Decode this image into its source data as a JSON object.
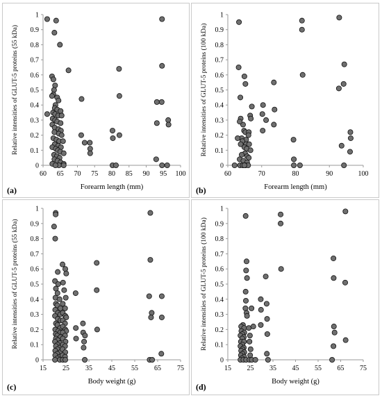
{
  "chart_data": [
    {
      "type": "scatter",
      "panel_label": "(a)",
      "xlabel": "Forearm length (mm)",
      "ylabel": "Relative intensities of GLUT-5 proteins (55 kDa)",
      "xlim": [
        60,
        100
      ],
      "ylim": [
        0,
        1
      ],
      "xticks": [
        "60",
        "65",
        "70",
        "75",
        "80",
        "85",
        "90",
        "95",
        "100"
      ],
      "yticks": [
        "0",
        "0.1",
        "0.2",
        "0.3",
        "0.4",
        "0.5",
        "0.6",
        "0.7",
        "0.8",
        "0.9",
        "1"
      ],
      "grid": false,
      "marker_color": "#6f6f6f",
      "points": [
        [
          61.2,
          0.97
        ],
        [
          63.3,
          0.88
        ],
        [
          63.8,
          0.96
        ],
        [
          64.9,
          0.8
        ],
        [
          62.6,
          0.59
        ],
        [
          63.0,
          0.57
        ],
        [
          63.5,
          0.53
        ],
        [
          63.2,
          0.5
        ],
        [
          63.0,
          0.47
        ],
        [
          62.6,
          0.46
        ],
        [
          64.1,
          0.45
        ],
        [
          64.5,
          0.43
        ],
        [
          63.6,
          0.4
        ],
        [
          63.4,
          0.38
        ],
        [
          64.1,
          0.37
        ],
        [
          65.1,
          0.36
        ],
        [
          62.9,
          0.35
        ],
        [
          63.5,
          0.34
        ],
        [
          64.4,
          0.33
        ],
        [
          65.4,
          0.33
        ],
        [
          61.2,
          0.34
        ],
        [
          62.8,
          0.31
        ],
        [
          63.5,
          0.3
        ],
        [
          64.1,
          0.29
        ],
        [
          65.1,
          0.28
        ],
        [
          62.7,
          0.27
        ],
        [
          63.4,
          0.25
        ],
        [
          64.5,
          0.24
        ],
        [
          65.2,
          0.23
        ],
        [
          63.3,
          0.22
        ],
        [
          64.6,
          0.21
        ],
        [
          65.4,
          0.2
        ],
        [
          63.0,
          0.18
        ],
        [
          63.9,
          0.17
        ],
        [
          64.7,
          0.16
        ],
        [
          65.8,
          0.16
        ],
        [
          63.4,
          0.14
        ],
        [
          64.4,
          0.13
        ],
        [
          65.2,
          0.12
        ],
        [
          62.7,
          0.12
        ],
        [
          63.7,
          0.11
        ],
        [
          64.3,
          0.1
        ],
        [
          65.0,
          0.09
        ],
        [
          66.0,
          0.08
        ],
        [
          63.2,
          0.07
        ],
        [
          64.0,
          0.06
        ],
        [
          64.8,
          0.05
        ],
        [
          63.3,
          0.04
        ],
        [
          64.2,
          0.03
        ],
        [
          65.1,
          0.02
        ],
        [
          66.0,
          0.01
        ],
        [
          62.7,
          0.01
        ],
        [
          64.6,
          0.0
        ],
        [
          63.6,
          0.0
        ],
        [
          66.0,
          0.0
        ],
        [
          67.4,
          0.63
        ],
        [
          71.2,
          0.44
        ],
        [
          71.1,
          0.2
        ],
        [
          72.1,
          0.15
        ],
        [
          73.6,
          0.15
        ],
        [
          73.7,
          0.11
        ],
        [
          73.7,
          0.08
        ],
        [
          80.2,
          0.23
        ],
        [
          80.3,
          0.18
        ],
        [
          82.1,
          0.64
        ],
        [
          82.2,
          0.46
        ],
        [
          82.2,
          0.2
        ],
        [
          80.2,
          0.0
        ],
        [
          81.2,
          0.0
        ],
        [
          93.1,
          0.42
        ],
        [
          94.5,
          0.42
        ],
        [
          93.1,
          0.28
        ],
        [
          94.6,
          0.97
        ],
        [
          94.6,
          0.66
        ],
        [
          96.4,
          0.3
        ],
        [
          96.5,
          0.27
        ],
        [
          92.9,
          0.04
        ],
        [
          94.6,
          0.0
        ],
        [
          96.1,
          0.0
        ]
      ]
    },
    {
      "type": "scatter",
      "panel_label": "(b)",
      "xlabel": "Forearm length (mm)",
      "ylabel": "Relative intensities of GLUT-5 proteins (100 kDa)",
      "xlim": [
        60,
        100
      ],
      "ylim": [
        0,
        1
      ],
      "xticks": [
        "60",
        "70",
        "80",
        "90",
        "100"
      ],
      "yticks": [
        "0",
        "0.1",
        "0.2",
        "0.3",
        "0.4",
        "0.5",
        "0.6",
        "0.7",
        "0.8",
        "0.9",
        "1"
      ],
      "grid": false,
      "marker_color": "#6f6f6f",
      "points": [
        [
          63.3,
          0.95
        ],
        [
          63.2,
          0.65
        ],
        [
          63.7,
          0.45
        ],
        [
          63.8,
          0.31
        ],
        [
          64.9,
          0.59
        ],
        [
          65.2,
          0.54
        ],
        [
          64.5,
          0.27
        ],
        [
          63.5,
          0.29
        ],
        [
          64.8,
          0.23
        ],
        [
          65.2,
          0.22
        ],
        [
          66.2,
          0.22
        ],
        [
          66.1,
          0.2
        ],
        [
          67.1,
          0.39
        ],
        [
          66.6,
          0.33
        ],
        [
          66.8,
          0.31
        ],
        [
          64.1,
          0.18
        ],
        [
          62.9,
          0.18
        ],
        [
          65.4,
          0.17
        ],
        [
          64.3,
          0.16
        ],
        [
          63.8,
          0.14
        ],
        [
          65.4,
          0.14
        ],
        [
          66.3,
          0.14
        ],
        [
          64.9,
          0.12
        ],
        [
          65.6,
          0.11
        ],
        [
          66.7,
          0.1
        ],
        [
          65.1,
          0.08
        ],
        [
          64.1,
          0.07
        ],
        [
          65.7,
          0.06
        ],
        [
          66.2,
          0.05
        ],
        [
          63.5,
          0.04
        ],
        [
          64.6,
          0.03
        ],
        [
          65.7,
          0.02
        ],
        [
          62.0,
          0.0
        ],
        [
          63.6,
          0.0
        ],
        [
          64.4,
          0.0
        ],
        [
          65.2,
          0.0
        ],
        [
          66.0,
          0.0
        ],
        [
          64.9,
          0.0
        ],
        [
          70.2,
          0.34
        ],
        [
          70.3,
          0.23
        ],
        [
          70.4,
          0.4
        ],
        [
          71.3,
          0.3
        ],
        [
          73.6,
          0.55
        ],
        [
          73.8,
          0.37
        ],
        [
          73.6,
          0.27
        ],
        [
          79.4,
          0.17
        ],
        [
          79.5,
          0.04
        ],
        [
          79.5,
          0.0
        ],
        [
          81.3,
          0.0
        ],
        [
          81.9,
          0.96
        ],
        [
          81.9,
          0.9
        ],
        [
          82.1,
          0.6
        ],
        [
          92.9,
          0.98
        ],
        [
          92.8,
          0.51
        ],
        [
          93.6,
          0.13
        ],
        [
          94.2,
          0.54
        ],
        [
          94.4,
          0.67
        ],
        [
          94.3,
          0.0
        ],
        [
          96.2,
          0.22
        ],
        [
          96.3,
          0.18
        ],
        [
          96.1,
          0.09
        ]
      ]
    },
    {
      "type": "scatter",
      "panel_label": "(c)",
      "xlabel": "Body weight (g)",
      "ylabel": "Relative intensities of GLUT-5 proteins (55 kDa)",
      "xlim": [
        15,
        75
      ],
      "ylim": [
        0,
        1
      ],
      "xticks": [
        "15",
        "25",
        "35",
        "45",
        "55",
        "65",
        "75"
      ],
      "yticks": [
        "0",
        "0.1",
        "0.2",
        "0.3",
        "0.4",
        "0.5",
        "0.6",
        "0.7",
        "0.8",
        "0.9",
        "1"
      ],
      "grid": false,
      "marker_color": "#6f6f6f",
      "points": [
        [
          20.5,
          0.97
        ],
        [
          20.5,
          0.96
        ],
        [
          19.8,
          0.88
        ],
        [
          20.3,
          0.8
        ],
        [
          21.4,
          0.58
        ],
        [
          20.2,
          0.52
        ],
        [
          21.6,
          0.5
        ],
        [
          20.6,
          0.47
        ],
        [
          21.3,
          0.44
        ],
        [
          20.4,
          0.41
        ],
        [
          22.2,
          0.4
        ],
        [
          20.6,
          0.37
        ],
        [
          21.2,
          0.36
        ],
        [
          22.6,
          0.34
        ],
        [
          20.3,
          0.33
        ],
        [
          21.5,
          0.31
        ],
        [
          22.5,
          0.3
        ],
        [
          20.2,
          0.29
        ],
        [
          21.4,
          0.27
        ],
        [
          22.6,
          0.26
        ],
        [
          20.6,
          0.24
        ],
        [
          21.3,
          0.23
        ],
        [
          22.4,
          0.21
        ],
        [
          20.3,
          0.2
        ],
        [
          21.6,
          0.19
        ],
        [
          22.5,
          0.18
        ],
        [
          20.5,
          0.17
        ],
        [
          21.2,
          0.16
        ],
        [
          22.6,
          0.15
        ],
        [
          20.6,
          0.14
        ],
        [
          21.4,
          0.13
        ],
        [
          20.2,
          0.12
        ],
        [
          22.3,
          0.11
        ],
        [
          21.3,
          0.1
        ],
        [
          20.6,
          0.09
        ],
        [
          22.2,
          0.08
        ],
        [
          21.3,
          0.07
        ],
        [
          20.3,
          0.06
        ],
        [
          22.5,
          0.05
        ],
        [
          21.2,
          0.04
        ],
        [
          20.3,
          0.03
        ],
        [
          22.2,
          0.02
        ],
        [
          21.2,
          0.01
        ],
        [
          20.2,
          0.0
        ],
        [
          22.3,
          0.0
        ],
        [
          23.5,
          0.63
        ],
        [
          24.7,
          0.6
        ],
        [
          25.1,
          0.57
        ],
        [
          23.7,
          0.51
        ],
        [
          24.2,
          0.46
        ],
        [
          24.9,
          0.41
        ],
        [
          23.6,
          0.37
        ],
        [
          24.6,
          0.34
        ],
        [
          23.6,
          0.31
        ],
        [
          24.7,
          0.29
        ],
        [
          25.1,
          0.28
        ],
        [
          23.6,
          0.26
        ],
        [
          24.6,
          0.24
        ],
        [
          23.6,
          0.22
        ],
        [
          24.7,
          0.2
        ],
        [
          25.1,
          0.19
        ],
        [
          23.6,
          0.18
        ],
        [
          24.6,
          0.16
        ],
        [
          23.6,
          0.14
        ],
        [
          24.8,
          0.12
        ],
        [
          23.6,
          0.1
        ],
        [
          24.6,
          0.09
        ],
        [
          23.5,
          0.07
        ],
        [
          24.7,
          0.05
        ],
        [
          23.5,
          0.03
        ],
        [
          24.6,
          0.02
        ],
        [
          23.6,
          0.0
        ],
        [
          24.7,
          0.0
        ],
        [
          29.2,
          0.44
        ],
        [
          29.3,
          0.21
        ],
        [
          29.4,
          0.14
        ],
        [
          32.4,
          0.24
        ],
        [
          32.5,
          0.18
        ],
        [
          33.3,
          0.16
        ],
        [
          32.9,
          0.12
        ],
        [
          32.7,
          0.08
        ],
        [
          33.2,
          0.0
        ],
        [
          38.4,
          0.64
        ],
        [
          38.4,
          0.46
        ],
        [
          38.6,
          0.2
        ],
        [
          61.8,
          0.97
        ],
        [
          61.8,
          0.66
        ],
        [
          61.3,
          0.42
        ],
        [
          62.4,
          0.31
        ],
        [
          62.1,
          0.28
        ],
        [
          61.5,
          0.0
        ],
        [
          62.6,
          0.0
        ],
        [
          66.8,
          0.42
        ],
        [
          66.8,
          0.28
        ],
        [
          66.6,
          0.04
        ]
      ]
    },
    {
      "type": "scatter",
      "panel_label": "(d)",
      "xlabel": "Body weight (g)",
      "ylabel": "Relative intensities of GLUT-5 proteins (100 kDa)",
      "xlim": [
        15,
        75
      ],
      "ylim": [
        0,
        1
      ],
      "xticks": [
        "15",
        "25",
        "35",
        "45",
        "55",
        "65",
        "75"
      ],
      "yticks": [
        "0",
        "0.1",
        "0.2",
        "0.3",
        "0.4",
        "0.5",
        "0.6",
        "0.7",
        "0.8",
        "0.9",
        "1"
      ],
      "grid": false,
      "marker_color": "#6f6f6f",
      "points": [
        [
          22.9,
          0.95
        ],
        [
          23.3,
          0.65
        ],
        [
          23.1,
          0.59
        ],
        [
          23.5,
          0.54
        ],
        [
          22.9,
          0.45
        ],
        [
          23.0,
          0.39
        ],
        [
          22.8,
          0.34
        ],
        [
          23.3,
          0.31
        ],
        [
          23.5,
          0.29
        ],
        [
          21.7,
          0.23
        ],
        [
          20.9,
          0.22
        ],
        [
          22.2,
          0.21
        ],
        [
          21.0,
          0.19
        ],
        [
          22.3,
          0.18
        ],
        [
          21.4,
          0.17
        ],
        [
          20.6,
          0.16
        ],
        [
          22.1,
          0.15
        ],
        [
          21.4,
          0.14
        ],
        [
          20.8,
          0.12
        ],
        [
          22.2,
          0.12
        ],
        [
          21.5,
          0.1
        ],
        [
          20.6,
          0.09
        ],
        [
          22.1,
          0.08
        ],
        [
          21.5,
          0.07
        ],
        [
          20.9,
          0.06
        ],
        [
          22.3,
          0.05
        ],
        [
          21.5,
          0.04
        ],
        [
          20.8,
          0.03
        ],
        [
          22.2,
          0.02
        ],
        [
          21.3,
          0.01
        ],
        [
          20.6,
          0.0
        ],
        [
          21.9,
          0.0
        ],
        [
          23.1,
          0.0
        ],
        [
          24.3,
          0.21
        ],
        [
          24.8,
          0.16
        ],
        [
          24.6,
          0.12
        ],
        [
          25.1,
          0.07
        ],
        [
          24.9,
          0.03
        ],
        [
          24.6,
          0.0
        ],
        [
          25.6,
          0.0
        ],
        [
          26.3,
          0.22
        ],
        [
          25.5,
          0.34
        ],
        [
          27.2,
          0.0
        ],
        [
          29.6,
          0.4
        ],
        [
          29.7,
          0.33
        ],
        [
          29.6,
          0.23
        ],
        [
          31.8,
          0.55
        ],
        [
          32.2,
          0.37
        ],
        [
          32.4,
          0.27
        ],
        [
          32.5,
          0.17
        ],
        [
          32.3,
          0.04
        ],
        [
          32.8,
          0.0
        ],
        [
          38.4,
          0.96
        ],
        [
          38.4,
          0.9
        ],
        [
          38.6,
          0.6
        ],
        [
          61.8,
          0.67
        ],
        [
          61.9,
          0.54
        ],
        [
          62.0,
          0.22
        ],
        [
          62.3,
          0.18
        ],
        [
          61.8,
          0.09
        ],
        [
          61.2,
          0.0
        ],
        [
          67.1,
          0.98
        ],
        [
          67.0,
          0.51
        ],
        [
          67.2,
          0.13
        ]
      ]
    }
  ]
}
